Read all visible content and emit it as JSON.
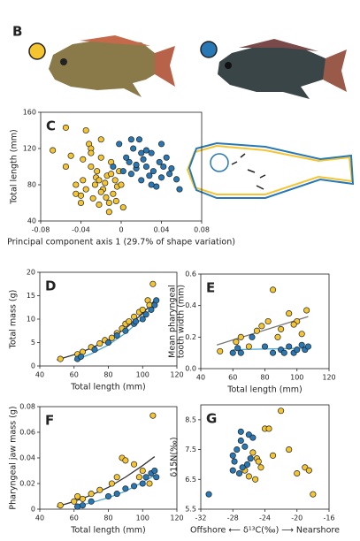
{
  "panel_b": {
    "label": "B"
  },
  "chart_data": [
    {
      "type": "scatter",
      "label": "C",
      "xlabel": "Principal component axis 1 (29.7% of shape variation)",
      "ylabel": "Total length (mm)",
      "xlim": [
        -0.08,
        0.08
      ],
      "xticks": [
        -0.08,
        -0.04,
        0,
        0.04,
        0.08
      ],
      "ylim": [
        40,
        160
      ],
      "yticks": [
        40,
        80,
        120,
        160
      ],
      "series": [
        {
          "mode": "markers",
          "color": "#f5c431",
          "x": [
            -0.068,
            -0.055,
            -0.05,
            -0.045,
            -0.04,
            -0.038,
            -0.035,
            -0.032,
            -0.03,
            -0.028,
            -0.026,
            -0.024,
            -0.022,
            -0.02,
            -0.018,
            -0.016,
            -0.014,
            -0.012,
            -0.01,
            -0.008,
            -0.006,
            -0.004,
            -0.002,
            0,
            0.002,
            -0.03,
            -0.025,
            -0.02,
            -0.015,
            -0.01,
            -0.035,
            -0.04,
            -0.045,
            -0.02,
            -0.005,
            -0.055,
            -0.03,
            -0.012,
            -0.022,
            -0.038
          ],
          "values": [
            118,
            143,
            112,
            70,
            60,
            85,
            140,
            125,
            120,
            65,
            80,
            95,
            58,
            110,
            75,
            82,
            90,
            60,
            105,
            70,
            85,
            78,
            95,
            80,
            55,
            100,
            88,
            72,
            66,
            92,
            75,
            68,
            80,
            130,
            62,
            100,
            115,
            50,
            85,
            108
          ]
        },
        {
          "mode": "markers",
          "color": "#2878b5",
          "x": [
            -0.008,
            -0.002,
            0.002,
            0.005,
            0.008,
            0.01,
            0.012,
            0.015,
            0.018,
            0.02,
            0.022,
            0.025,
            0.028,
            0.03,
            0.032,
            0.035,
            0.038,
            0.04,
            0.042,
            0.045,
            0.048,
            0.05,
            0.055,
            0.058,
            0.01,
            0.02,
            0.03,
            0.04,
            0.015,
            0.025
          ],
          "values": [
            100,
            125,
            95,
            110,
            105,
            92,
            120,
            98,
            130,
            85,
            108,
            100,
            90,
            115,
            95,
            78,
            105,
            88,
            100,
            110,
            92,
            98,
            86,
            75,
            130,
            115,
            80,
            125,
            102,
            118
          ]
        }
      ]
    },
    {
      "type": "scatter",
      "label": "D",
      "xlabel": "Total length (mm)",
      "ylabel": "Total mass (g)",
      "xlim": [
        40,
        120
      ],
      "xticks": [
        40,
        60,
        80,
        100,
        120
      ],
      "ylim": [
        0,
        20
      ],
      "yticks": [
        0,
        5,
        10,
        15,
        20
      ],
      "series": [
        {
          "mode": "markers",
          "color": "#f5c431",
          "x": [
            52,
            62,
            65,
            70,
            75,
            78,
            82,
            85,
            88,
            90,
            95,
            98,
            100,
            103,
            106,
            104,
            92
          ],
          "values": [
            1.5,
            2.5,
            3,
            4,
            4.8,
            5.5,
            6,
            7,
            8,
            9,
            10.5,
            11.5,
            12,
            14,
            17.5,
            13,
            9.5
          ]
        },
        {
          "mode": "markers",
          "color": "#2878b5",
          "x": [
            62,
            64,
            72,
            80,
            85,
            90,
            95,
            100,
            102,
            105,
            107,
            108,
            96
          ],
          "values": [
            1.5,
            2,
            3.5,
            5,
            6.5,
            7.5,
            9,
            10,
            11,
            12,
            13,
            14,
            9.5
          ]
        },
        {
          "mode": "line",
          "color": "#333333",
          "x": [
            50,
            60,
            70,
            80,
            90,
            100,
            107
          ],
          "values": [
            1.3,
            2.4,
            3.8,
            5.6,
            8,
            11.2,
            14
          ]
        },
        {
          "mode": "line",
          "color": "#4aa8d8",
          "x": [
            60,
            70,
            80,
            90,
            100,
            108
          ],
          "values": [
            1.2,
            2.6,
            4.5,
            7,
            10.2,
            13.5
          ]
        }
      ]
    },
    {
      "type": "scatter",
      "label": "E",
      "xlabel": "Total length (mm)",
      "ylabel": [
        "Mean pharyngeal",
        "tooth width (mm)"
      ],
      "xlim": [
        40,
        120
      ],
      "xticks": [
        40,
        60,
        80,
        100,
        120
      ],
      "ylim": [
        0,
        0.6
      ],
      "yticks": [
        {
          "value": 0,
          "label": "0.0"
        },
        0.2,
        0.4,
        0.6
      ],
      "series": [
        {
          "mode": "markers",
          "color": "#f5c431",
          "x": [
            52,
            62,
            65,
            70,
            75,
            78,
            82,
            85,
            88,
            90,
            95,
            100,
            103,
            106,
            98
          ],
          "values": [
            0.11,
            0.17,
            0.2,
            0.14,
            0.24,
            0.27,
            0.3,
            0.5,
            0.2,
            0.25,
            0.35,
            0.3,
            0.22,
            0.37,
            0.28
          ]
        },
        {
          "mode": "markers",
          "color": "#2878b5",
          "x": [
            60,
            63,
            65,
            72,
            80,
            85,
            90,
            95,
            98,
            100,
            103,
            105,
            107,
            92
          ],
          "values": [
            0.1,
            0.13,
            0.1,
            0.2,
            0.14,
            0.1,
            0.12,
            0.14,
            0.1,
            0.12,
            0.15,
            0.12,
            0.14,
            0.1
          ]
        },
        {
          "mode": "line",
          "color": "#777777",
          "x": [
            50,
            107
          ],
          "values": [
            0.15,
            0.33
          ]
        },
        {
          "mode": "line",
          "color": "#4aa8d8",
          "x": [
            60,
            107
          ],
          "values": [
            0.12,
            0.13
          ]
        }
      ]
    },
    {
      "type": "scatter",
      "label": "F",
      "xlabel": "Total length (mm)",
      "ylabel": "Pharyngeal jaw mass (g)",
      "xlim": [
        40,
        120
      ],
      "xticks": [
        40,
        60,
        80,
        100,
        120
      ],
      "ylim": [
        0,
        0.08
      ],
      "yticks": [
        0,
        0.02,
        0.04,
        0.06,
        0.08
      ],
      "series": [
        {
          "mode": "markers",
          "color": "#f5c431",
          "x": [
            52,
            60,
            62,
            65,
            70,
            75,
            82,
            85,
            88,
            90,
            95,
            100,
            104,
            106,
            98
          ],
          "values": [
            0.003,
            0.006,
            0.01,
            0.008,
            0.012,
            0.015,
            0.02,
            0.025,
            0.04,
            0.038,
            0.035,
            0.03,
            0.02,
            0.073,
            0.025
          ]
        },
        {
          "mode": "markers",
          "color": "#2878b5",
          "x": [
            62,
            65,
            70,
            80,
            85,
            90,
            95,
            100,
            102,
            105,
            107,
            108
          ],
          "values": [
            0.002,
            0.003,
            0.006,
            0.01,
            0.012,
            0.016,
            0.018,
            0.02,
            0.025,
            0.028,
            0.03,
            0.025
          ]
        },
        {
          "mode": "line",
          "color": "#333333",
          "x": [
            50,
            60,
            70,
            80,
            90,
            100,
            107
          ],
          "values": [
            0.002,
            0.006,
            0.011,
            0.017,
            0.025,
            0.034,
            0.041
          ]
        },
        {
          "mode": "line",
          "color": "#4aa8d8",
          "x": [
            60,
            70,
            80,
            90,
            100,
            108
          ],
          "values": [
            0.002,
            0.005,
            0.009,
            0.014,
            0.021,
            0.027
          ]
        }
      ]
    },
    {
      "type": "scatter",
      "label": "G",
      "xlabel": "Offshore ⟵ δ¹³C(‰) ⟶ Nearshore",
      "ylabel": "δ15N(‰)",
      "xlim": [
        -32,
        -16
      ],
      "xticks": [
        -32,
        -28,
        -24,
        -20,
        -16
      ],
      "ylim": [
        5.5,
        9
      ],
      "yticks": [
        5.5,
        6.5,
        7.5,
        8.5
      ],
      "series": [
        {
          "mode": "markers",
          "color": "#f5c431",
          "x": [
            -26,
            -25,
            -24.5,
            -24,
            -23.5,
            -22,
            -21,
            -20,
            -19,
            -18.5,
            -18,
            -25.5,
            -24.8,
            -26.5,
            -23,
            -25.2
          ],
          "values": [
            6.6,
            7.2,
            6.9,
            8.2,
            8.2,
            8.8,
            7.5,
            6.7,
            6.9,
            6.8,
            6,
            7.4,
            7.1,
            6.8,
            7.3,
            6.5
          ]
        },
        {
          "mode": "markers",
          "color": "#2878b5",
          "x": [
            -31,
            -28,
            -27.5,
            -27,
            -26.8,
            -26.5,
            -26,
            -25.8,
            -27.8,
            -27.2,
            -26.2,
            -25.5,
            -28,
            -27
          ],
          "values": [
            6,
            6.8,
            7.5,
            7.8,
            6.9,
            7.6,
            8,
            7.2,
            7.1,
            6.7,
            7,
            7.9,
            7.3,
            8.1
          ]
        }
      ]
    }
  ]
}
